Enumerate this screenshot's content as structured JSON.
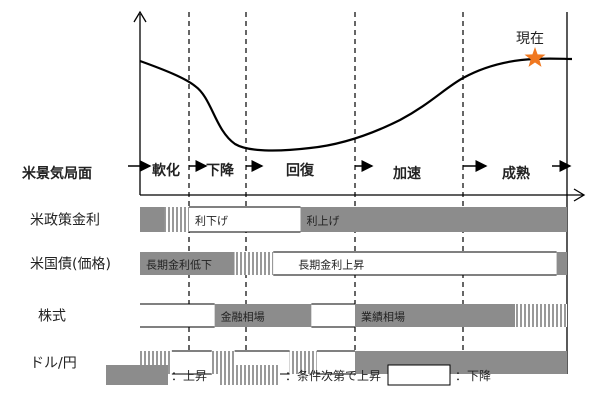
{
  "current_label": "現在",
  "phase_header": "米景気局面",
  "phases": [
    "軟化",
    "下降",
    "回復",
    "加速",
    "成熟"
  ],
  "rows": [
    {
      "label": "米政策金利",
      "segments": [
        {
          "type": "up",
          "from": 0,
          "to": 0.5
        },
        {
          "type": "conditional",
          "from": 0.5,
          "to": 1
        },
        {
          "type": "down",
          "from": 1,
          "to": 2.5,
          "text": "利下げ"
        },
        {
          "type": "up",
          "from": 2.5,
          "to": 5,
          "text": "利上げ"
        }
      ]
    },
    {
      "label": "米国債(価格)",
      "segments": [
        {
          "type": "up",
          "from": 0,
          "to": 1.8,
          "text": "長期金利低下"
        },
        {
          "type": "conditional",
          "from": 1.8,
          "to": 2.25
        },
        {
          "type": "down",
          "from": 2.25,
          "to": 4.9,
          "text": "長期金利上昇"
        },
        {
          "type": "up",
          "from": 4.9,
          "to": 5
        }
      ]
    },
    {
      "label": "株式",
      "segments": [
        {
          "type": "down",
          "from": 0,
          "to": 1.45
        },
        {
          "type": "up",
          "from": 1.45,
          "to": 2.6,
          "text": "金融相場"
        },
        {
          "type": "down",
          "from": 2.6,
          "to": 3
        },
        {
          "type": "up",
          "from": 3,
          "to": 4.5,
          "text": "業績相場"
        },
        {
          "type": "conditional",
          "from": 4.5,
          "to": 5
        }
      ]
    },
    {
      "label": "ドル/円",
      "segments": [
        {
          "type": "conditional",
          "from": 0,
          "to": 0.65
        },
        {
          "type": "down",
          "from": 0.65,
          "to": 1.4
        },
        {
          "type": "conditional",
          "from": 1.4,
          "to": 1.8
        },
        {
          "type": "down",
          "from": 1.8,
          "to": 2.4
        },
        {
          "type": "conditional",
          "from": 2.4,
          "to": 2.65
        },
        {
          "type": "down",
          "from": 2.65,
          "to": 3
        },
        {
          "type": "up",
          "from": 3,
          "to": 5
        }
      ]
    }
  ],
  "legend": [
    {
      "type": "up",
      "label": "：上昇"
    },
    {
      "type": "conditional",
      "label": "：条件次第で上昇"
    },
    {
      "type": "down",
      "label": "：下降"
    }
  ],
  "colors": {
    "up": "#8c8c8c",
    "star": "#f07820",
    "line": "#000000"
  }
}
